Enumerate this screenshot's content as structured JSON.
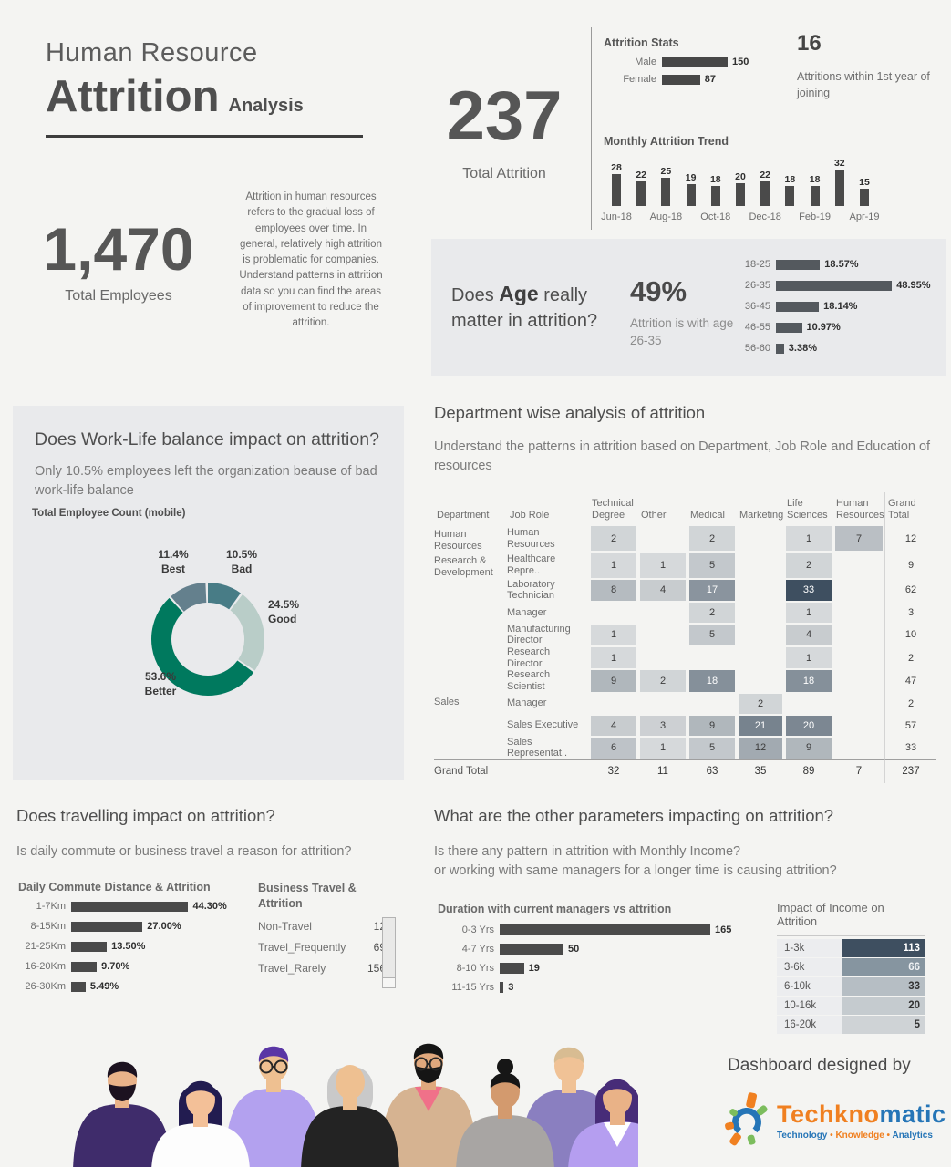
{
  "page": {
    "bg": "#f4f4f2",
    "panel_bg": "#e9eaec",
    "bar_color": "#4a4a4a"
  },
  "header": {
    "title_line1": "Human Resource",
    "title_word": "Attrition",
    "title_suffix": "Analysis"
  },
  "employees": {
    "value": "1,470",
    "label": "Total Employees"
  },
  "intro_text": "Attrition in human resources refers to the gradual loss of employees over time. In general, relatively high attrition is problematic for companies. Understand patterns in attrition data so you can find the areas of improvement to reduce the attrition.",
  "attrition_total": {
    "value": "237",
    "label": "Total Attrition"
  },
  "first_year": {
    "value": "16",
    "label": "Attritions within 1st year of joining"
  },
  "age_section": {
    "q_lead": "Does ",
    "q_bold": "Age",
    "q_rest": " really matter in attrition?",
    "pct": "49%",
    "note": "Attrition is with age 26-35"
  },
  "worklife_section": {
    "title": "Does Work-Life balance impact on attrition?",
    "subtitle": "Only 10.5% employees left the organization beause of bad work-life balance",
    "chart_label": "Total Employee Count (mobile)"
  },
  "dept_section": {
    "title": "Department wise analysis of attrition",
    "subtitle": "Understand the patterns in attrition based on Department, Job Role and Education of resources"
  },
  "travel_section": {
    "title": "Does travelling impact on attrition?",
    "subtitle": "Is daily commute or business travel a reason for attrition?"
  },
  "params_section": {
    "title": "What are the other parameters impacting on attrition?",
    "subtitle_line1": "Is there any pattern in attrition with Monthly Income?",
    "subtitle_line2": "or working with same managers for a longer time is causing attrition?"
  },
  "footer": {
    "designed_by": "Dashboard designed by",
    "brand_part1": "Techkno",
    "brand_part2": "matic",
    "tagline": [
      "Technology",
      "Knowledge",
      "Analytics"
    ],
    "brand_orange": "#f08021",
    "brand_blue": "#2575b7",
    "brand_green": "#7cbd5d"
  },
  "chart_data": [
    {
      "id": "gender",
      "type": "bar",
      "orientation": "horizontal",
      "title": "Attrition Stats",
      "categories": [
        "Male",
        "Female"
      ],
      "values": [
        150,
        87
      ],
      "bar_color": "#474747"
    },
    {
      "id": "monthly_trend",
      "type": "bar",
      "title": "Monthly Attrition Trend",
      "categories": [
        "Jun-18",
        "Jul-18",
        "Aug-18",
        "Sep-18",
        "Oct-18",
        "Nov-18",
        "Dec-18",
        "Jan-19",
        "Feb-19",
        "Mar-19",
        "Apr-19"
      ],
      "values": [
        28,
        22,
        25,
        19,
        18,
        20,
        22,
        18,
        18,
        32,
        15
      ],
      "x_tick_labels": [
        "Jun-18",
        "Aug-18",
        "Oct-18",
        "Dec-18",
        "Feb-19",
        "Apr-19"
      ],
      "bar_color": "#4a4a4a"
    },
    {
      "id": "age",
      "type": "bar",
      "orientation": "horizontal",
      "categories": [
        "18-25",
        "26-35",
        "36-45",
        "46-55",
        "56-60"
      ],
      "values": [
        18.57,
        48.95,
        18.14,
        10.97,
        3.38
      ],
      "labels": [
        "18.57%",
        "48.95%",
        "18.14%",
        "10.97%",
        "3.38%"
      ],
      "bar_color": "#54595e"
    },
    {
      "id": "worklife_donut",
      "type": "pie",
      "title": "Total Employee Count (mobile)",
      "slices": [
        {
          "label": "Bad",
          "pct": 10.5,
          "color": "#487c86"
        },
        {
          "label": "Good",
          "pct": 24.5,
          "color": "#b9cdc8"
        },
        {
          "label": "Better",
          "pct": 53.6,
          "color": "#00795e"
        },
        {
          "label": "Best",
          "pct": 11.4,
          "color": "#64808d"
        }
      ]
    },
    {
      "id": "dept_table",
      "type": "table",
      "col_headers": [
        "Department",
        "Job Role",
        "Technical Degree",
        "Other",
        "Medical",
        "Marketing",
        "Life Sciences",
        "Human Resources",
        "Grand Total"
      ],
      "rows": [
        {
          "department": "Human Resources",
          "job_role": "Human Resources",
          "values": [
            2,
            null,
            2,
            null,
            1,
            7
          ],
          "total": 12
        },
        {
          "department": "Research & Development",
          "job_role": "Healthcare Repre..",
          "values": [
            1,
            1,
            5,
            null,
            2,
            null
          ],
          "total": 9
        },
        {
          "department": "",
          "job_role": "Laboratory Technician",
          "values": [
            8,
            4,
            17,
            null,
            33,
            null
          ],
          "total": 62
        },
        {
          "department": "",
          "job_role": "Manager",
          "values": [
            null,
            null,
            2,
            null,
            1,
            null
          ],
          "total": 3
        },
        {
          "department": "",
          "job_role": "Manufacturing Director",
          "values": [
            1,
            null,
            5,
            null,
            4,
            null
          ],
          "total": 10
        },
        {
          "department": "",
          "job_role": "Research Director",
          "values": [
            1,
            null,
            null,
            null,
            1,
            null
          ],
          "total": 2
        },
        {
          "department": "",
          "job_role": "Research Scientist",
          "values": [
            9,
            2,
            18,
            null,
            18,
            null
          ],
          "total": 47
        },
        {
          "department": "Sales",
          "job_role": "Manager",
          "values": [
            null,
            null,
            null,
            2,
            null,
            null
          ],
          "total": 2
        },
        {
          "department": "",
          "job_role": "Sales Executive",
          "values": [
            4,
            3,
            9,
            21,
            20,
            null
          ],
          "total": 57
        },
        {
          "department": "",
          "job_role": "Sales Representat..",
          "values": [
            6,
            1,
            5,
            12,
            9,
            null
          ],
          "total": 33
        }
      ],
      "grand_total": {
        "label": "Grand Total",
        "values": [
          32,
          11,
          63,
          35,
          89,
          7
        ],
        "total": 237
      },
      "heat": {
        "min": 1,
        "max": 33,
        "light": "#d6d9db",
        "dark": "#3e4f60",
        "white_text_from": 17
      }
    },
    {
      "id": "commute",
      "type": "bar",
      "orientation": "horizontal",
      "title": "Daily Commute Distance & Attrition",
      "categories": [
        "1-7Km",
        "8-15Km",
        "21-25Km",
        "16-20Km",
        "26-30Km"
      ],
      "values": [
        44.3,
        27.0,
        13.5,
        9.7,
        5.49
      ],
      "labels": [
        "44.30%",
        "27.00%",
        "13.50%",
        "9.70%",
        "5.49%"
      ],
      "bar_color": "#4a4a4a"
    },
    {
      "id": "business_travel",
      "type": "table",
      "title": "Business Travel & Attrition",
      "categories": [
        "Non-Travel",
        "Travel_Frequently",
        "Travel_Rarely"
      ],
      "values": [
        12,
        69,
        156
      ]
    },
    {
      "id": "managers",
      "type": "bar",
      "orientation": "horizontal",
      "title": "Duration with current managers vs attrition",
      "categories": [
        "0-3 Yrs",
        "4-7 Yrs",
        "8-10 Yrs",
        "11-15 Yrs"
      ],
      "values": [
        165,
        50,
        19,
        3
      ],
      "bar_color": "#4a4a4a"
    },
    {
      "id": "income",
      "type": "heatmap",
      "title": "Impact of Income on Attrition",
      "rows": [
        {
          "label": "1-3k",
          "value": 113,
          "color": "#3e4f60",
          "text_color": "#ffffff"
        },
        {
          "label": "3-6k",
          "value": 66,
          "color": "#8695a0",
          "text_color": "#eef1f3"
        },
        {
          "label": "6-10k",
          "value": 33,
          "color": "#b6bec4",
          "text_color": "#333333"
        },
        {
          "label": "10-16k",
          "value": 20,
          "color": "#c5cbcf",
          "text_color": "#333333"
        },
        {
          "label": "16-20k",
          "value": 5,
          "color": "#cfd3d6",
          "text_color": "#333333"
        }
      ]
    }
  ]
}
